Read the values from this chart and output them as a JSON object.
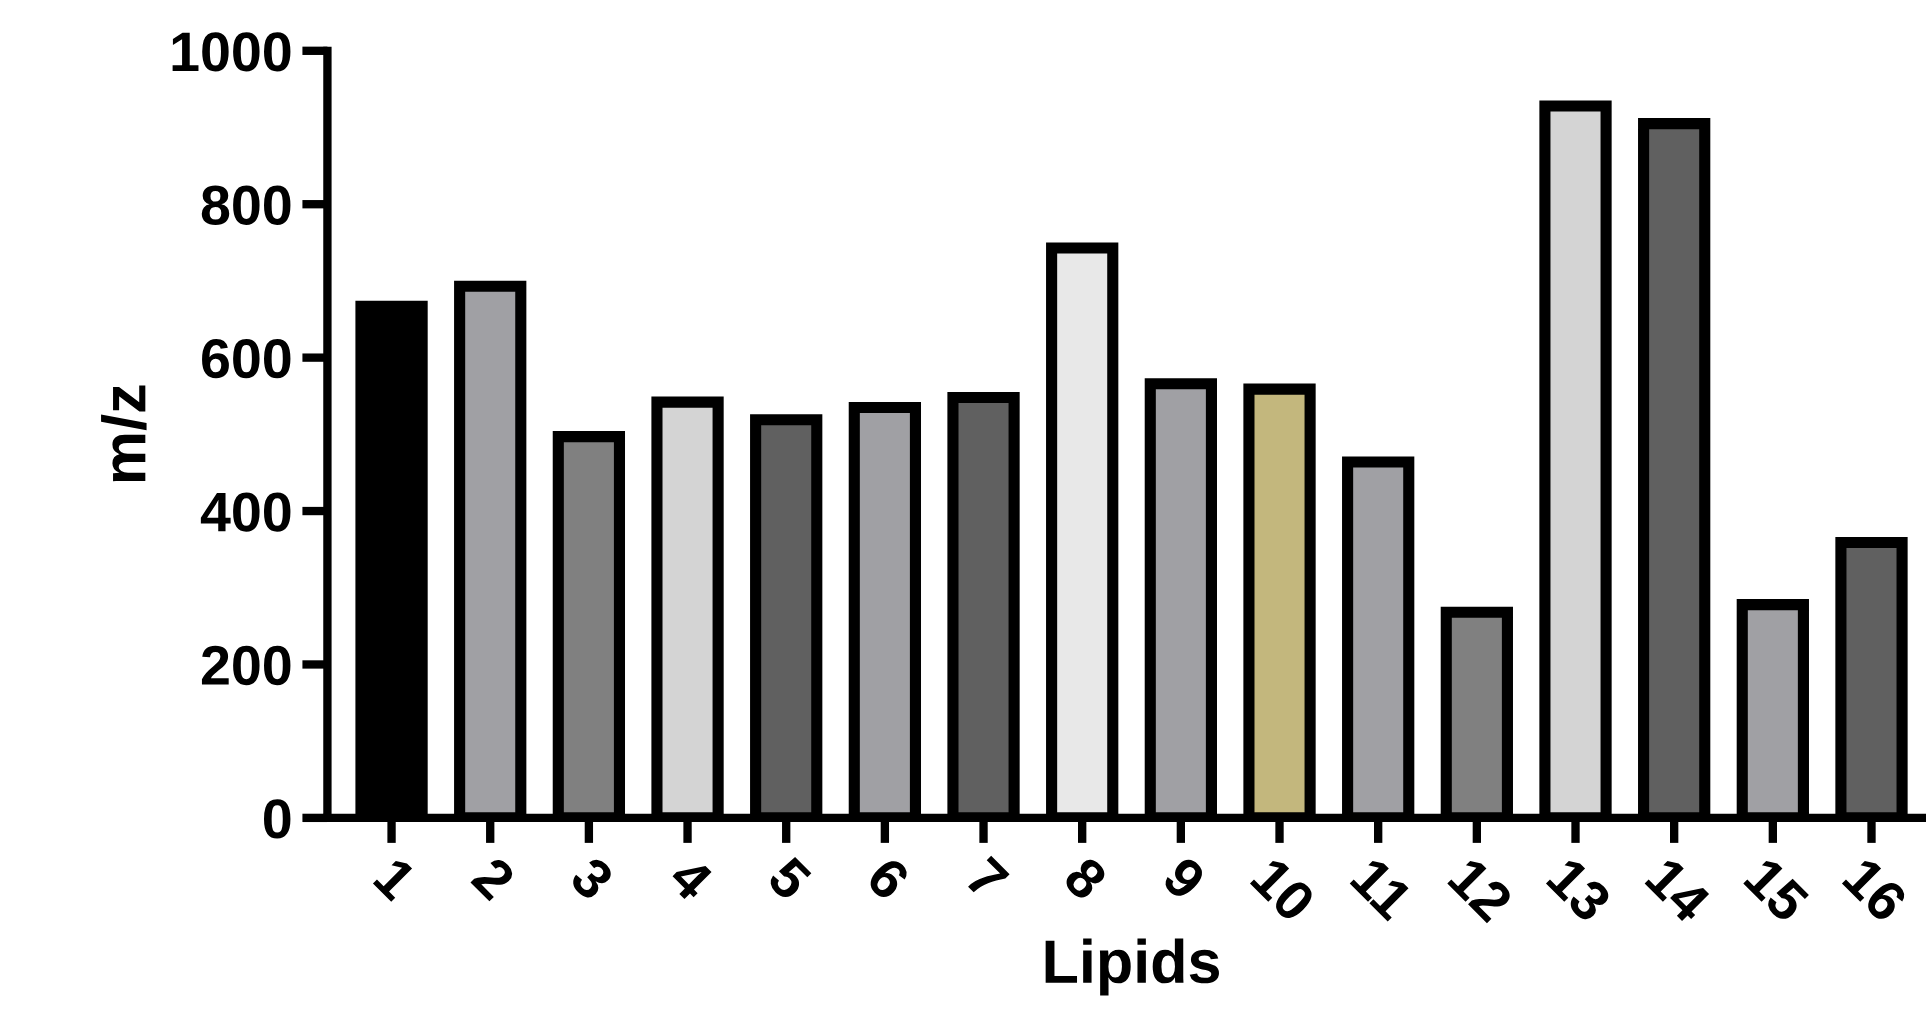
{
  "chart_data": {
    "type": "bar",
    "xlabel": "Lipids",
    "ylabel": "m/z",
    "categories": [
      "1",
      "2",
      "3",
      "4",
      "5",
      "6",
      "7",
      "8",
      "9",
      "10",
      "11",
      "12",
      "13",
      "14",
      "15",
      "16"
    ],
    "values": [
      667,
      693,
      497,
      542,
      519,
      535,
      548,
      743,
      566,
      559,
      464,
      268,
      928,
      905,
      278,
      359
    ],
    "colors": [
      "#000000",
      "#a0a0a4",
      "#808080",
      "#d4d4d4",
      "#606060",
      "#a0a0a4",
      "#606060",
      "#e8e8e8",
      "#a0a0a4",
      "#c3b77d",
      "#a0a0a4",
      "#808080",
      "#d4d4d4",
      "#606060",
      "#a0a0a4",
      "#606060"
    ],
    "ylim": [
      0,
      1000
    ],
    "yticks": [
      0,
      200,
      400,
      600,
      800,
      1000
    ],
    "grid": false,
    "legend": false
  }
}
